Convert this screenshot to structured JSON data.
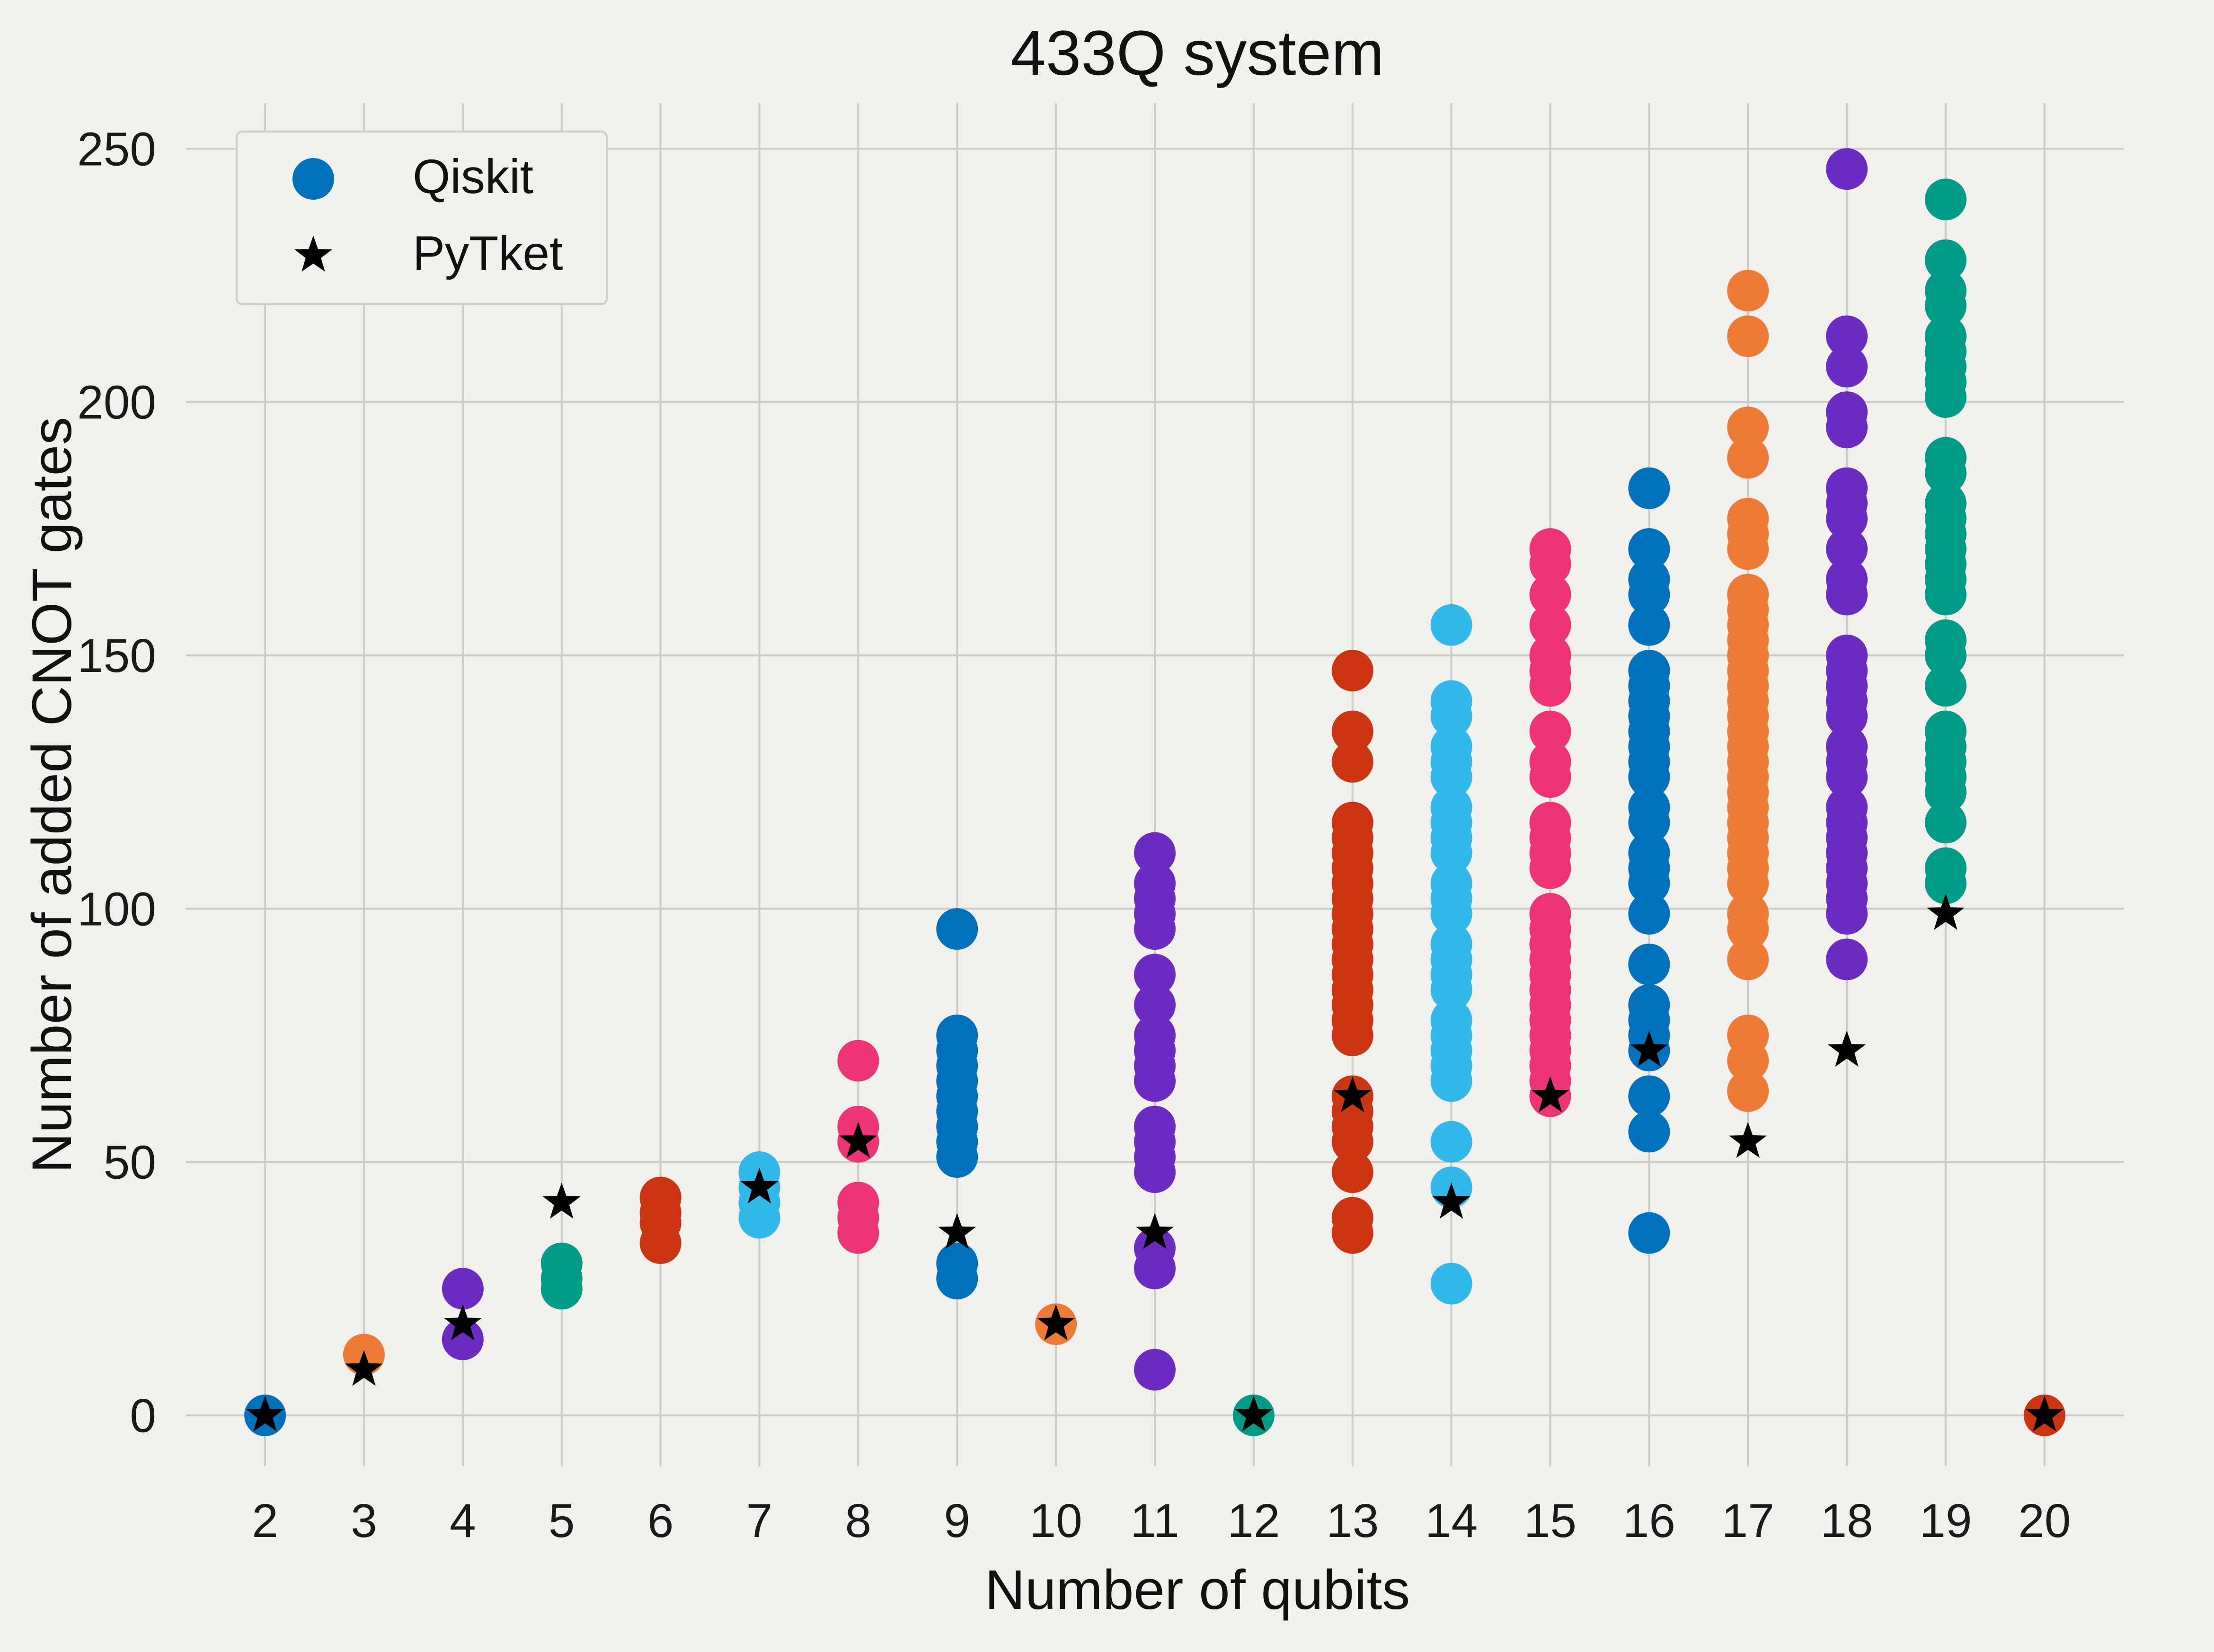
{
  "chart_data": {
    "type": "scatter",
    "title": "433Q system",
    "xlabel": "Number of qubits",
    "ylabel": "Number of added CNOT gates",
    "x_ticks": [
      2,
      3,
      4,
      5,
      6,
      7,
      8,
      9,
      10,
      11,
      12,
      13,
      14,
      15,
      16,
      17,
      18,
      19,
      20
    ],
    "y_ticks": [
      0,
      50,
      100,
      150,
      200,
      250
    ],
    "xlim": [
      1.2,
      20.8
    ],
    "ylim": [
      -10,
      259
    ],
    "grid": true,
    "legend_position": "top-left",
    "series": [
      {
        "name": "Qiskit",
        "marker": "circle",
        "legend_color": "#0072bd",
        "colors_by_x": {
          "2": "#0072bd",
          "3": "#ed7a36",
          "4": "#6c2bc2",
          "5": "#009c88",
          "6": "#cc3513",
          "7": "#33b8ec",
          "8": "#ed3477",
          "9": "#0072bd",
          "10": "#ed7a36",
          "11": "#6c2bc2",
          "12": "#009c88",
          "13": "#cc3513",
          "14": "#33b8ec",
          "15": "#ed3477",
          "16": "#0072bd",
          "17": "#ed7a36",
          "18": "#6c2bc2",
          "19": "#009c88",
          "20": "#cc3513"
        },
        "points_by_x": {
          "2": [
            0
          ],
          "3": [
            12
          ],
          "4": [
            15,
            25
          ],
          "5": [
            25,
            27,
            30
          ],
          "6": [
            34,
            38,
            40,
            43
          ],
          "7": [
            39,
            42,
            45,
            48
          ],
          "8": [
            36,
            39,
            42,
            54,
            57,
            70
          ],
          "9": [
            27,
            30,
            51,
            54,
            57,
            60,
            63,
            66,
            69,
            72,
            75,
            96
          ],
          "10": [
            18
          ],
          "11": [
            9,
            29,
            33,
            48,
            51,
            54,
            57,
            66,
            69,
            72,
            75,
            81,
            87,
            96,
            99,
            102,
            105,
            111
          ],
          "12": [
            0
          ],
          "13": [
            36,
            39,
            48,
            54,
            57,
            60,
            63,
            75,
            78,
            81,
            84,
            87,
            90,
            93,
            96,
            99,
            102,
            105,
            108,
            111,
            114,
            117,
            129,
            135,
            147
          ],
          "14": [
            26,
            45,
            54,
            66,
            69,
            72,
            75,
            78,
            84,
            87,
            90,
            93,
            99,
            102,
            105,
            111,
            114,
            117,
            120,
            126,
            129,
            132,
            138,
            141,
            156
          ],
          "15": [
            63,
            66,
            69,
            72,
            75,
            78,
            81,
            84,
            87,
            90,
            93,
            96,
            99,
            108,
            111,
            114,
            117,
            126,
            129,
            135,
            144,
            147,
            150,
            156,
            162,
            168,
            171
          ],
          "16": [
            36,
            56,
            63,
            72,
            75,
            78,
            81,
            89,
            99,
            105,
            108,
            111,
            117,
            120,
            126,
            129,
            132,
            135,
            138,
            141,
            144,
            147,
            156,
            162,
            165,
            171,
            183
          ],
          "17": [
            64,
            70,
            75,
            90,
            96,
            99,
            105,
            108,
            111,
            114,
            117,
            120,
            123,
            126,
            129,
            132,
            135,
            138,
            141,
            144,
            147,
            150,
            153,
            156,
            159,
            162,
            171,
            174,
            177,
            189,
            195,
            213,
            222
          ],
          "18": [
            90,
            99,
            102,
            105,
            108,
            111,
            114,
            117,
            120,
            126,
            129,
            132,
            138,
            141,
            144,
            147,
            150,
            162,
            165,
            171,
            177,
            180,
            183,
            195,
            198,
            207,
            213,
            246
          ],
          "19": [
            105,
            108,
            117,
            123,
            126,
            129,
            132,
            135,
            144,
            150,
            153,
            162,
            165,
            168,
            171,
            174,
            177,
            180,
            186,
            189,
            201,
            204,
            207,
            210,
            213,
            219,
            222,
            228,
            240
          ],
          "20": [
            0
          ]
        }
      },
      {
        "name": "PyTket",
        "marker": "star",
        "color": "#000000",
        "x": [
          2,
          3,
          4,
          5,
          7,
          8,
          9,
          10,
          11,
          12,
          13,
          14,
          15,
          16,
          17,
          18,
          19,
          20
        ],
        "y": [
          0,
          9,
          18,
          42,
          45,
          54,
          36,
          18,
          36,
          0,
          63,
          42,
          63,
          72,
          54,
          72,
          99,
          0
        ]
      }
    ]
  }
}
